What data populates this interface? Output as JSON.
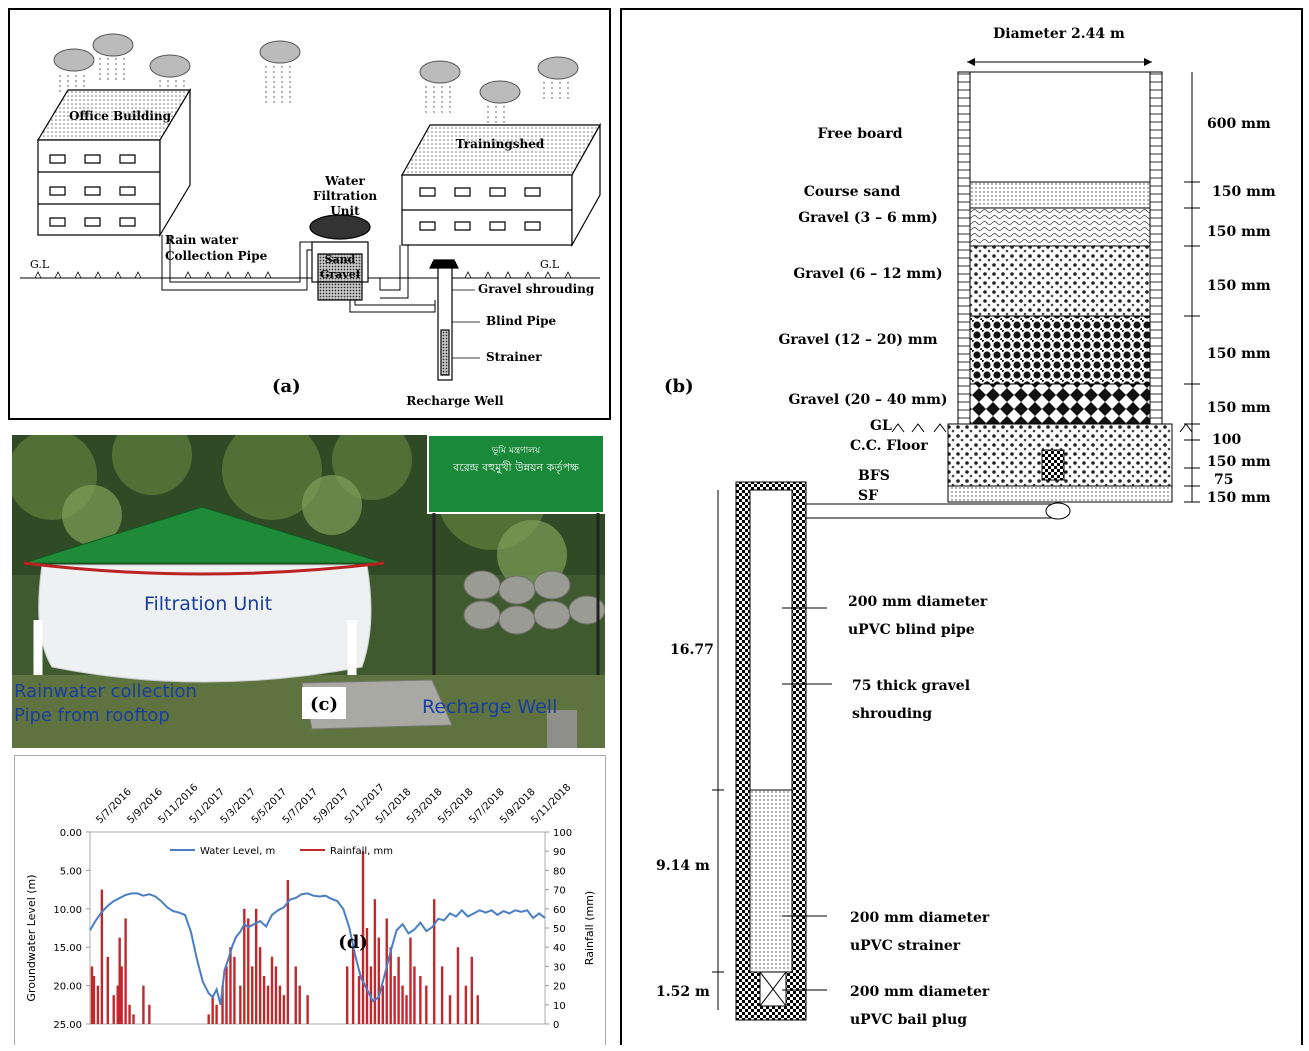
{
  "panel_a": {
    "tag": "(a)",
    "office_building": "Office Building",
    "trainingshed": "Trainingshed",
    "water_filtration": [
      "Water",
      "Filtration",
      "Unit"
    ],
    "sand": "Sand",
    "gravel": "Gravel",
    "rainwater_pipe": [
      "Rain water",
      "Collection Pipe"
    ],
    "gl_left": "G.L",
    "gl_right": "G.L",
    "gravel_shrouding": "Gravel shrouding",
    "blind_pipe": "Blind Pipe",
    "strainer": "Strainer",
    "recharge_well": "Recharge Well"
  },
  "panel_b": {
    "tag": "(b)",
    "diameter": "Diameter 2.44 m",
    "free_board": "Free board",
    "course_sand": "Course sand",
    "gravel_3_6": "Gravel (3 – 6 mm)",
    "gravel_6_12": "Gravel (6 – 12 mm)",
    "gravel_12_20": "Gravel (12 – 20) mm",
    "gravel_20_40": "Gravel (20 – 40 mm)",
    "gl": "GL",
    "cc_floor": "C.C. Floor",
    "bfs": "BFS",
    "sf": "SF",
    "dim_600": "600 mm",
    "dim_150a": "150 mm",
    "dim_150b": "150 mm",
    "dim_150c": "150 mm",
    "dim_150d": "150 mm",
    "dim_150e": "150 mm",
    "dim_100": "100",
    "dim_150f": "150 mm",
    "dim_75": "75",
    "dim_150g": "150 mm",
    "blind_pipe_1": "200 mm diameter",
    "blind_pipe_2": "uPVC blind pipe",
    "shroud_1": "75 thick gravel",
    "shroud_2": "shrouding",
    "strainer_1": "200 mm diameter",
    "strainer_2": "uPVC strainer",
    "plug_1": "200 mm diameter",
    "plug_2": "uPVC bail plug",
    "depth_1677": "16.77",
    "depth_914": "9.14 m",
    "depth_152": "1.52 m"
  },
  "panel_c": {
    "tag": "(c)",
    "sign_line1": "ভূমি মন্ত্রণালয়",
    "sign_line2": "বরেন্দ্র বহুমুখী উন্নয়ন কর্তৃপক্ষ",
    "filtration_unit": "Filtration Unit",
    "rain_pipe_1": "Rainwater collection",
    "rain_pipe_2": "Pipe from rooftop",
    "recharge_well": "Recharge Well"
  },
  "panel_d": {
    "tag": "(d)",
    "colors": {
      "water": "#4a7ec4",
      "rain": "#c0282c"
    },
    "chart_data": {
      "type": "line",
      "x_ticks": [
        "5/7/2016",
        "5/9/2016",
        "5/11/2016",
        "5/1/2017",
        "5/3/2017",
        "5/5/2017",
        "5/7/2017",
        "5/9/2017",
        "5/11/2017",
        "5/1/2018",
        "5/3/2018",
        "5/5/2018",
        "5/7/2018",
        "5/9/2018",
        "5/11/2018"
      ],
      "ylabel_left": "Groundwater Level (m)",
      "ylabel_right": "Rainfall (mm)",
      "y_left_ticks": [
        "0.00",
        "5.00",
        "10.00",
        "15.00",
        "20.00",
        "25.00"
      ],
      "y_right_ticks": [
        "100",
        "90",
        "80",
        "70",
        "60",
        "50",
        "40",
        "30",
        "20",
        "10",
        "0"
      ],
      "ylim_left": [
        0,
        25
      ],
      "ylim_right": [
        0,
        100
      ],
      "left_inverted": true,
      "series": [
        {
          "name": "Water Level, m",
          "type": "line",
          "x": [
            0,
            3,
            6,
            9,
            12,
            15,
            18,
            21,
            24,
            27,
            30,
            33,
            36,
            39,
            42,
            45,
            48,
            51,
            54,
            57,
            60,
            62,
            64,
            66,
            68,
            70,
            72,
            74,
            76,
            78,
            80,
            83,
            86,
            89,
            92,
            95,
            98,
            101,
            104,
            107,
            110,
            113,
            116,
            119,
            122,
            125,
            128,
            131,
            134,
            137,
            140,
            143,
            146,
            149,
            152,
            155,
            158,
            161,
            164,
            167,
            170,
            173,
            176,
            179,
            182,
            185,
            188,
            191,
            194,
            197,
            200,
            203,
            206,
            209,
            212,
            215,
            218,
            221,
            224,
            227,
            230
          ],
          "y": [
            12.8,
            11.5,
            10.4,
            9.6,
            9.0,
            8.6,
            8.2,
            8.0,
            8.0,
            8.3,
            8.1,
            8.4,
            9.0,
            9.8,
            10.3,
            10.5,
            10.8,
            13.0,
            16.5,
            19.5,
            21.0,
            21.5,
            20.5,
            22.5,
            18.0,
            16.5,
            14.8,
            13.6,
            13.0,
            12.0,
            12.4,
            12.0,
            11.6,
            12.3,
            10.8,
            10.2,
            9.8,
            8.8,
            8.6,
            8.1,
            8.0,
            8.3,
            8.4,
            8.3,
            8.7,
            9.0,
            10.0,
            12.4,
            16.0,
            19.0,
            20.5,
            22.0,
            21.5,
            18.5,
            15.5,
            12.8,
            12.0,
            13.2,
            12.7,
            11.8,
            12.9,
            12.4,
            11.3,
            11.5,
            10.6,
            11.0,
            10.2,
            11.0,
            10.6,
            10.2,
            10.5,
            10.2,
            10.8,
            10.3,
            10.6,
            10.2,
            10.4,
            10.2,
            11.2,
            10.6,
            11.2
          ]
        },
        {
          "name": "Rainfall, mm",
          "type": "bar",
          "x": [
            1,
            2,
            4,
            6,
            9,
            12,
            14,
            15,
            16,
            18,
            20,
            22,
            27,
            30,
            60,
            62,
            64,
            67,
            69,
            71,
            73,
            76,
            78,
            80,
            82,
            84,
            86,
            88,
            90,
            92,
            94,
            96,
            98,
            100,
            104,
            106,
            110,
            130,
            133,
            136,
            138,
            140,
            142,
            144,
            146,
            148,
            150,
            152,
            154,
            156,
            158,
            160,
            162,
            164,
            167,
            170,
            174,
            178,
            182,
            186,
            190,
            193,
            196
          ],
          "y": [
            30,
            25,
            20,
            70,
            35,
            15,
            20,
            45,
            30,
            55,
            10,
            5,
            20,
            10,
            5,
            15,
            10,
            20,
            30,
            40,
            35,
            20,
            60,
            55,
            30,
            60,
            40,
            25,
            20,
            35,
            30,
            20,
            15,
            75,
            30,
            20,
            15,
            30,
            40,
            25,
            90,
            50,
            30,
            65,
            45,
            20,
            55,
            40,
            25,
            35,
            20,
            15,
            45,
            30,
            25,
            20,
            65,
            30,
            15,
            40,
            20,
            35,
            15
          ]
        }
      ]
    }
  }
}
